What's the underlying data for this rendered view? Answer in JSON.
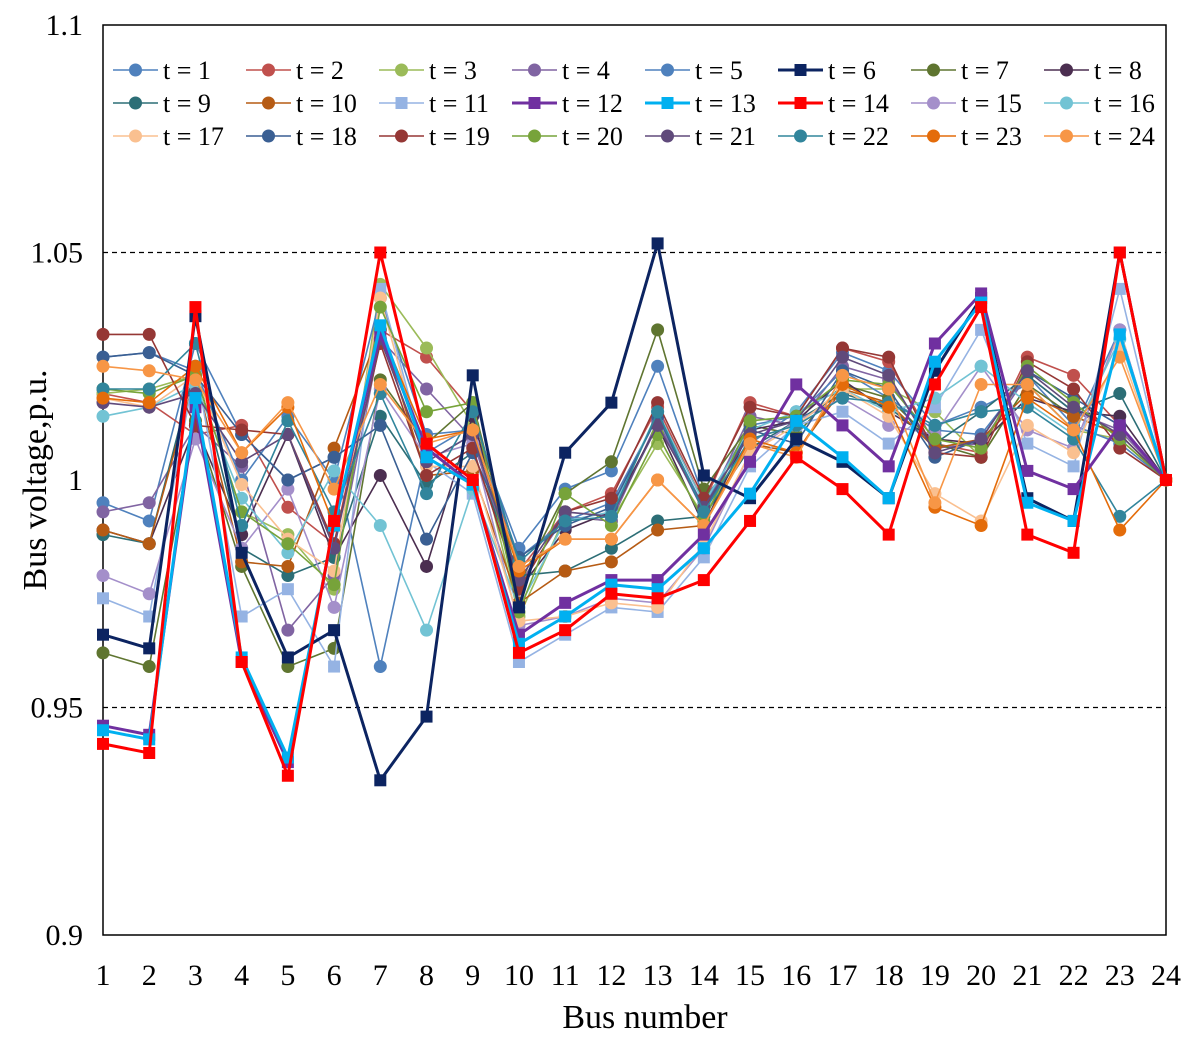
{
  "chart_data": {
    "type": "line",
    "title": "",
    "xlabel": "Bus number",
    "ylabel": "Bus voltage,p.u.",
    "ylim": [
      0.9,
      1.1
    ],
    "yticks": [
      "0.9",
      "0.95",
      "1",
      "1.05",
      "1.1"
    ],
    "reference_lines": [
      0.95,
      1.05
    ],
    "categories": [
      "1",
      "2",
      "3",
      "4",
      "5",
      "6",
      "7",
      "8",
      "9",
      "10",
      "11",
      "12",
      "13",
      "14",
      "15",
      "16",
      "17",
      "18",
      "19",
      "20",
      "21",
      "22",
      "23",
      "24"
    ],
    "legend_position": "top",
    "series": [
      {
        "name": "t = 1",
        "color": "#4f81bd",
        "marker": "circle",
        "values": [
          0.995,
          0.991,
          1.03,
          1.01,
          1.0,
          1.005,
          0.959,
          1.006,
          1.012,
          0.985,
          0.998,
          1.002,
          1.025,
          0.996,
          1.008,
          1.015,
          1.028,
          1.024,
          1.012,
          1.016,
          1.021,
          1.011,
          1.033,
          1.0
        ]
      },
      {
        "name": "t = 2",
        "color": "#c0504d",
        "marker": "circle",
        "values": [
          1.019,
          1.017,
          1.01,
          1.012,
          0.994,
          0.986,
          1.033,
          1.027,
          1.015,
          0.98,
          0.993,
          0.997,
          1.016,
          0.995,
          1.017,
          1.014,
          1.029,
          1.026,
          1.008,
          1.006,
          1.027,
          1.023,
          1.012,
          1.0
        ]
      },
      {
        "name": "t = 3",
        "color": "#9bbb59",
        "marker": "circle",
        "values": [
          1.019,
          1.02,
          1.023,
          0.993,
          0.988,
          0.976,
          1.043,
          1.029,
          1.012,
          0.97,
          0.992,
          0.991,
          1.008,
          0.992,
          1.009,
          1.012,
          1.02,
          1.02,
          1.015,
          1.005,
          1.021,
          1.011,
          1.009,
          1.0
        ]
      },
      {
        "name": "t = 4",
        "color": "#8064a2",
        "marker": "circle",
        "values": [
          0.993,
          0.995,
          1.012,
          1.003,
          0.967,
          0.979,
          1.031,
          1.02,
          1.009,
          0.977,
          0.992,
          0.991,
          1.013,
          0.993,
          1.014,
          1.012,
          1.025,
          1.022,
          1.007,
          1.008,
          1.023,
          1.015,
          1.011,
          1.0
        ]
      },
      {
        "name": "t = 5",
        "color": "#4f81bd",
        "marker": "circle",
        "values": [
          1.027,
          1.028,
          1.024,
          1.0,
          1.014,
          1.0,
          1.04,
          1.01,
          1.011,
          0.983,
          0.991,
          0.995,
          1.014,
          0.994,
          1.012,
          1.014,
          1.024,
          1.018,
          1.011,
          1.01,
          1.023,
          1.012,
          1.008,
          1.0
        ]
      },
      {
        "name": "t = 6",
        "color": "#0c2461",
        "marker": "square",
        "values": [
          0.966,
          0.963,
          1.036,
          0.984,
          0.961,
          0.967,
          0.934,
          0.948,
          1.023,
          0.972,
          1.006,
          1.017,
          1.052,
          1.001,
          0.996,
          1.009,
          1.004,
          0.996,
          1.024,
          1.04,
          0.996,
          0.991,
          1.05,
          1.0
        ]
      },
      {
        "name": "t = 7",
        "color": "#5f7530",
        "marker": "circle",
        "values": [
          0.962,
          0.959,
          1.013,
          0.981,
          0.959,
          0.963,
          1.022,
          1.008,
          1.017,
          0.977,
          0.997,
          1.004,
          1.033,
          0.998,
          1.012,
          1.01,
          1.021,
          1.018,
          1.008,
          1.005,
          1.021,
          1.014,
          1.01,
          1.0
        ]
      },
      {
        "name": "t = 8",
        "color": "#4b2e50",
        "marker": "circle",
        "values": [
          0.989,
          0.986,
          1.012,
          0.988,
          1.01,
          0.983,
          1.001,
          0.981,
          1.014,
          0.976,
          0.989,
          0.993,
          1.012,
          0.99,
          1.011,
          1.013,
          1.022,
          1.015,
          1.009,
          1.008,
          1.018,
          1.015,
          1.014,
          1.0
        ]
      },
      {
        "name": "t = 9",
        "color": "#2c6e76",
        "marker": "circle",
        "values": [
          0.988,
          0.986,
          1.025,
          0.985,
          0.979,
          0.983,
          1.014,
          0.999,
          1.006,
          0.979,
          0.98,
          0.985,
          0.991,
          0.992,
          1.007,
          1.013,
          1.019,
          1.016,
          1.008,
          1.015,
          1.023,
          1.015,
          1.019,
          1.0
        ]
      },
      {
        "name": "t = 10",
        "color": "#b65b14",
        "marker": "circle",
        "values": [
          0.989,
          0.986,
          1.023,
          0.982,
          0.981,
          1.007,
          1.033,
          1.001,
          1.002,
          0.973,
          0.98,
          0.982,
          0.989,
          0.99,
          1.008,
          1.006,
          1.02,
          1.017,
          1.007,
          1.009,
          1.019,
          1.014,
          1.01,
          1.0
        ]
      },
      {
        "name": "t = 11",
        "color": "#95b3e3",
        "marker": "square",
        "values": [
          0.974,
          0.97,
          1.025,
          0.97,
          0.976,
          0.959,
          1.042,
          1.004,
          0.997,
          0.96,
          0.966,
          0.972,
          0.971,
          0.983,
          1.003,
          1.012,
          1.015,
          1.008,
          1.016,
          1.033,
          1.008,
          1.003,
          1.042,
          1.0
        ]
      },
      {
        "name": "t = 12",
        "color": "#7030a0",
        "marker": "square",
        "values": [
          0.946,
          0.944,
          1.016,
          0.96,
          0.938,
          0.99,
          1.032,
          1.007,
          0.999,
          0.966,
          0.973,
          0.978,
          0.978,
          0.988,
          1.004,
          1.021,
          1.012,
          1.003,
          1.03,
          1.041,
          1.002,
          0.998,
          1.012,
          1.0
        ]
      },
      {
        "name": "t = 13",
        "color": "#00b0f0",
        "marker": "square",
        "values": [
          0.945,
          0.943,
          1.018,
          0.961,
          0.939,
          0.99,
          1.034,
          1.005,
          0.999,
          0.964,
          0.97,
          0.977,
          0.976,
          0.985,
          0.997,
          1.013,
          1.005,
          0.996,
          1.026,
          1.039,
          0.995,
          0.991,
          1.032,
          1.0
        ]
      },
      {
        "name": "t = 14",
        "color": "#ff0000",
        "marker": "square",
        "values": [
          0.942,
          0.94,
          1.038,
          0.96,
          0.935,
          0.991,
          1.05,
          1.008,
          1.0,
          0.962,
          0.967,
          0.975,
          0.974,
          0.978,
          0.991,
          1.005,
          0.998,
          0.988,
          1.021,
          1.038,
          0.988,
          0.984,
          1.05,
          1.0
        ]
      },
      {
        "name": "t = 15",
        "color": "#a48fca",
        "marker": "circle",
        "values": [
          0.979,
          0.975,
          1.009,
          0.985,
          0.998,
          0.972,
          1.02,
          1.005,
          1.008,
          0.968,
          0.97,
          0.974,
          0.973,
          0.985,
          1.006,
          1.013,
          1.018,
          1.012,
          1.01,
          1.025,
          1.011,
          1.007,
          1.033,
          1.0
        ]
      },
      {
        "name": "t = 16",
        "color": "#72c3d4",
        "marker": "circle",
        "values": [
          1.014,
          1.016,
          1.021,
          0.996,
          0.984,
          1.002,
          0.99,
          0.967,
          0.998,
          0.972,
          0.991,
          0.993,
          1.015,
          0.995,
          1.011,
          1.015,
          1.02,
          1.015,
          1.018,
          1.025,
          1.017,
          1.01,
          1.031,
          1.0
        ]
      },
      {
        "name": "t = 17",
        "color": "#fac090",
        "marker": "circle",
        "values": [
          1.018,
          1.016,
          1.023,
          0.999,
          0.987,
          0.98,
          1.04,
          1.003,
          1.003,
          0.969,
          0.97,
          0.973,
          0.972,
          0.986,
          1.006,
          1.012,
          1.02,
          1.014,
          0.997,
          0.991,
          1.012,
          1.006,
          1.029,
          1.0
        ]
      },
      {
        "name": "t = 18",
        "color": "#3a5f93",
        "marker": "circle",
        "values": [
          1.027,
          1.028,
          1.023,
          1.01,
          1.0,
          1.005,
          1.012,
          0.987,
          1.006,
          0.983,
          0.99,
          0.994,
          1.014,
          0.993,
          1.011,
          1.008,
          1.024,
          1.02,
          1.005,
          1.009,
          1.024,
          1.018,
          1.012,
          1.0
        ]
      },
      {
        "name": "t = 19",
        "color": "#953735",
        "marker": "circle",
        "values": [
          1.032,
          1.032,
          1.012,
          1.011,
          1.01,
          0.986,
          1.03,
          1.001,
          1.007,
          0.976,
          0.993,
          0.996,
          1.017,
          0.996,
          1.016,
          1.014,
          1.029,
          1.027,
          1.006,
          1.005,
          1.026,
          1.02,
          1.007,
          1.0
        ]
      },
      {
        "name": "t = 20",
        "color": "#77a33a",
        "marker": "circle",
        "values": [
          1.02,
          1.019,
          1.023,
          0.993,
          0.986,
          0.977,
          1.038,
          1.015,
          1.017,
          0.971,
          0.997,
          0.99,
          1.01,
          0.991,
          1.013,
          1.014,
          1.022,
          1.021,
          1.009,
          1.007,
          1.025,
          1.017,
          1.009,
          1.0
        ]
      },
      {
        "name": "t = 21",
        "color": "#604a7b",
        "marker": "circle",
        "values": [
          1.017,
          1.016,
          1.019,
          1.004,
          1.01,
          0.985,
          1.031,
          1.004,
          1.01,
          0.978,
          0.993,
          0.992,
          1.012,
          0.994,
          1.01,
          1.013,
          1.027,
          1.023,
          1.006,
          1.009,
          1.024,
          1.016,
          1.01,
          1.0
        ]
      },
      {
        "name": "t = 22",
        "color": "#31859c",
        "marker": "circle",
        "values": [
          1.02,
          1.02,
          1.03,
          0.99,
          1.013,
          0.993,
          1.019,
          0.997,
          1.015,
          0.982,
          0.991,
          0.992,
          1.015,
          0.993,
          1.009,
          1.012,
          1.018,
          1.017,
          1.012,
          1.015,
          1.016,
          1.009,
          0.992,
          1.0
        ]
      },
      {
        "name": "t = 23",
        "color": "#e46c0a",
        "marker": "circle",
        "values": [
          1.018,
          1.017,
          1.025,
          1.006,
          1.016,
          0.99,
          1.033,
          1.009,
          1.011,
          0.98,
          0.987,
          0.987,
          1.0,
          0.99,
          1.009,
          1.006,
          1.021,
          1.016,
          0.994,
          0.99,
          1.018,
          1.011,
          0.989,
          1.0
        ]
      },
      {
        "name": "t = 24",
        "color": "#f79646",
        "marker": "circle",
        "values": [
          1.025,
          1.024,
          1.022,
          1.006,
          1.017,
          0.998,
          1.021,
          1.008,
          1.011,
          0.981,
          0.987,
          0.987,
          1.0,
          0.99,
          1.008,
          1.005,
          1.023,
          1.02,
          0.995,
          1.021,
          1.021,
          1.011,
          1.027,
          1.0
        ]
      }
    ]
  }
}
